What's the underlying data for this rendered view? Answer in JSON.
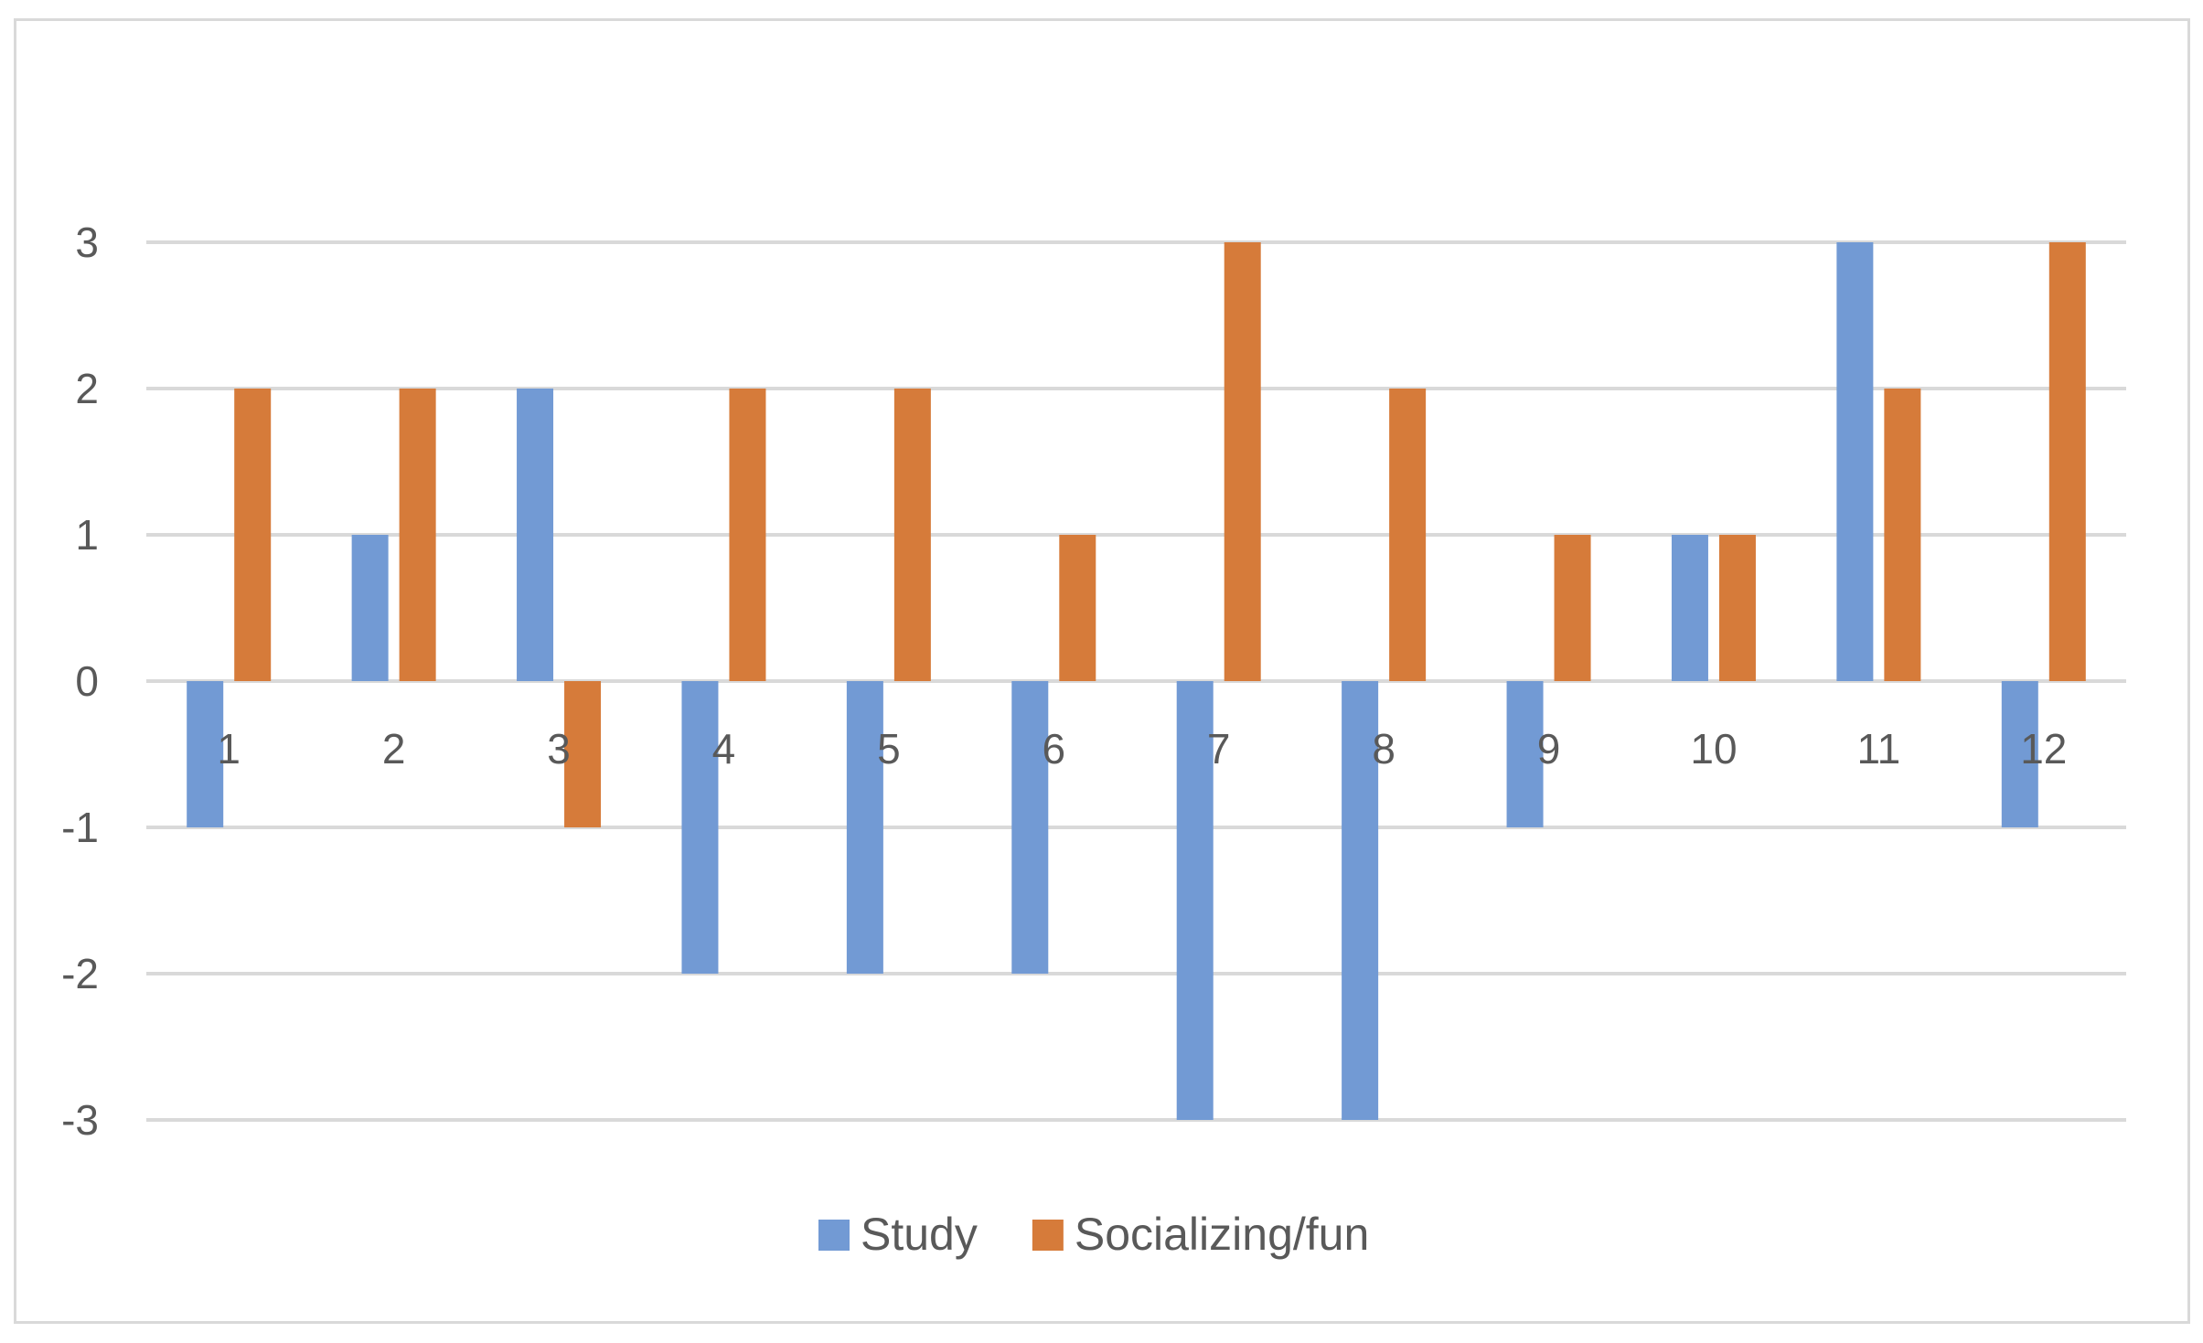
{
  "chart_data": {
    "type": "bar",
    "title": "",
    "xlabel": "",
    "ylabel": "",
    "categories": [
      "1",
      "2",
      "3",
      "4",
      "5",
      "6",
      "7",
      "8",
      "9",
      "10",
      "11",
      "12"
    ],
    "series": [
      {
        "name": "Study",
        "color": "#729ad4",
        "values": [
          -1,
          1,
          2,
          -2,
          -2,
          -2,
          -3,
          -3,
          -1,
          1,
          3,
          -1
        ]
      },
      {
        "name": "Socializing/fun",
        "color": "#d67b3a",
        "values": [
          2,
          2,
          -1,
          2,
          2,
          1,
          3,
          2,
          1,
          1,
          2,
          3
        ]
      }
    ],
    "ylim": [
      -3,
      3
    ],
    "yticks": [
      3,
      2,
      1,
      0,
      -1,
      -2,
      -3
    ],
    "grid": true,
    "gridline_color": "#d9d9d9",
    "legend_position": "bottom-center"
  }
}
